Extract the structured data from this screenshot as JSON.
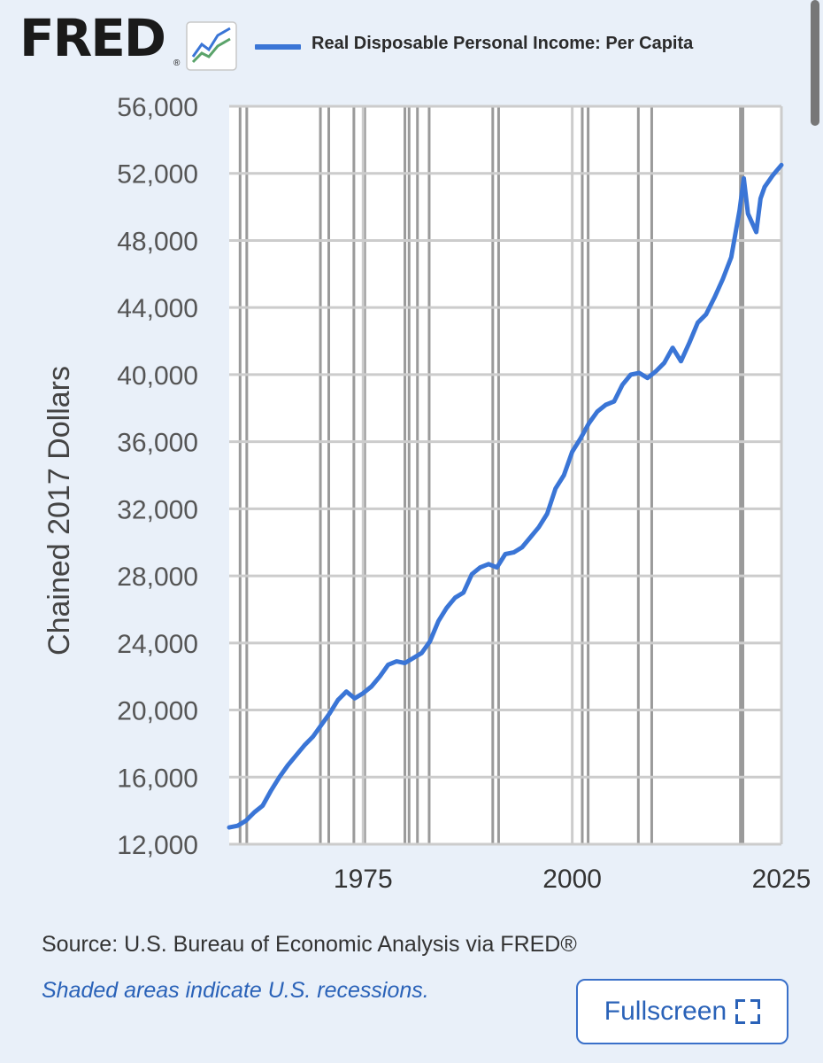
{
  "header": {
    "logo_text": "FRED",
    "logo_reg": "®",
    "legend_label": "Real Disposable Personal Income: Per Capita"
  },
  "source_text": "Source: U.S. Bureau of Economic Analysis via FRED®",
  "recession_note": "Shaded areas indicate U.S. recessions.",
  "fullscreen_label": "Fullscreen",
  "colors": {
    "series": "#3a75d6",
    "background": "#e9f0f9",
    "plot_background": "#ffffff",
    "recession_shade": "#9a9a9a",
    "grid": "#cccccc",
    "link": "#2a62b8"
  },
  "chart_data": {
    "type": "line",
    "title": "Real Disposable Personal Income: Per Capita",
    "xlabel": "",
    "ylabel": "Chained 2017 Dollars",
    "xlim": [
      1959,
      2025
    ],
    "ylim": [
      12000,
      56000
    ],
    "x_ticks": [
      1975,
      2000,
      2025
    ],
    "x_tick_labels": [
      "1975",
      "2000",
      "2025"
    ],
    "y_ticks": [
      12000,
      16000,
      20000,
      24000,
      28000,
      32000,
      36000,
      40000,
      44000,
      48000,
      52000,
      56000
    ],
    "y_tick_labels": [
      "12,000",
      "16,000",
      "20,000",
      "24,000",
      "28,000",
      "32,000",
      "36,000",
      "40,000",
      "44,000",
      "48,000",
      "52,000",
      "56,000"
    ],
    "grid": true,
    "recessions": [
      [
        1960.3,
        1961.1
      ],
      [
        1969.9,
        1970.9
      ],
      [
        1973.9,
        1975.2
      ],
      [
        1980.0,
        1980.5
      ],
      [
        1981.5,
        1982.9
      ],
      [
        1990.5,
        1991.2
      ],
      [
        2001.2,
        2001.9
      ],
      [
        2007.9,
        2009.5
      ],
      [
        2020.1,
        2020.4
      ]
    ],
    "series": [
      {
        "name": "Real Disposable Personal Income: Per Capita",
        "color": "#3a75d6",
        "x": [
          1959,
          1960,
          1961,
          1962,
          1963,
          1964,
          1965,
          1966,
          1967,
          1968,
          1969,
          1970,
          1971,
          1972,
          1973,
          1974,
          1975,
          1976,
          1977,
          1978,
          1979,
          1980,
          1981,
          1982,
          1983,
          1984,
          1985,
          1986,
          1987,
          1988,
          1989,
          1990,
          1991,
          1992,
          1993,
          1994,
          1995,
          1996,
          1997,
          1998,
          1999,
          2000,
          2001,
          2002,
          2003,
          2004,
          2005,
          2006,
          2007,
          2008,
          2009,
          2010,
          2011,
          2012,
          2013,
          2014,
          2015,
          2016,
          2017,
          2018,
          2019,
          2020,
          2020.5,
          2021,
          2022,
          2022.5,
          2023,
          2024,
          2025
        ],
        "values": [
          13000,
          13100,
          13400,
          13900,
          14300,
          15200,
          16000,
          16700,
          17300,
          17900,
          18400,
          19100,
          19800,
          20600,
          21100,
          20700,
          21000,
          21400,
          22000,
          22700,
          22900,
          22800,
          23100,
          23400,
          24100,
          25300,
          26100,
          26700,
          27000,
          28100,
          28500,
          28700,
          28500,
          29300,
          29400,
          29700,
          30300,
          30900,
          31700,
          33200,
          34000,
          35400,
          36200,
          37100,
          37800,
          38200,
          38400,
          39400,
          40000,
          40100,
          39800,
          40200,
          40700,
          41600,
          40800,
          41900,
          43100,
          43600,
          44600,
          45700,
          47000,
          49800,
          51700,
          49600,
          48500,
          50500,
          51200,
          51900,
          52500
        ]
      }
    ]
  }
}
